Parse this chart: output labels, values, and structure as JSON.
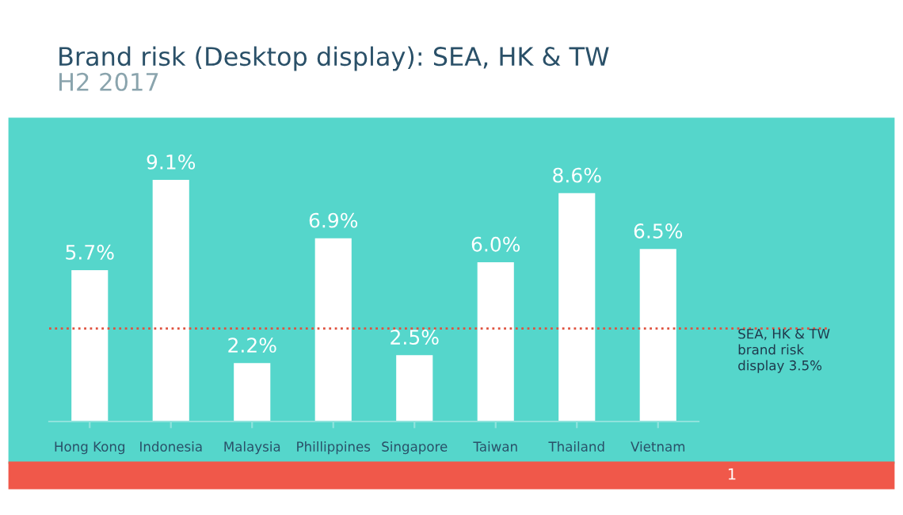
{
  "chart_data": {
    "type": "bar",
    "title": "Brand risk (Desktop display): SEA, HK & TW",
    "subtitle": "H2 2017",
    "categories": [
      "Hong Kong",
      "Indonesia",
      "Malaysia",
      "Phillippines",
      "Singapore",
      "Taiwan",
      "Thailand",
      "Vietnam"
    ],
    "values": [
      5.7,
      9.1,
      2.2,
      6.9,
      2.5,
      6.0,
      8.6,
      6.5
    ],
    "value_labels": [
      "5.7%",
      "9.1%",
      "2.2%",
      "6.9%",
      "2.5%",
      "6.0%",
      "8.6%",
      "6.5%"
    ],
    "color": "#ffffff",
    "grid": false,
    "legend": false,
    "ref_lines": [
      {
        "axis": "y",
        "value": 3.5,
        "label": "SEA, HK & TW\nbrand risk\ndisplay 3.5%",
        "color": "#e0523f",
        "line_style": "dotted"
      }
    ],
    "annotations": [
      "1"
    ]
  }
}
